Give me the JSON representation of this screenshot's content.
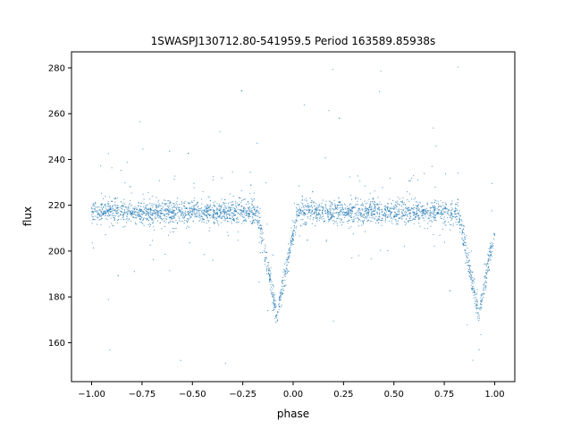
{
  "chart_data": {
    "type": "scatter",
    "title": "1SWASPJ130712.80-541959.5 Period 163589.85938s",
    "xlabel": "phase",
    "ylabel": "flux",
    "xlim": [
      -1.1,
      1.1
    ],
    "ylim": [
      143,
      287
    ],
    "xticks": [
      -1.0,
      -0.75,
      -0.5,
      -0.25,
      0.0,
      0.25,
      0.5,
      0.75,
      1.0
    ],
    "xtick_labels": [
      "−1.00",
      "−0.75",
      "−0.50",
      "−0.25",
      "0.00",
      "0.25",
      "0.50",
      "0.75",
      "1.00"
    ],
    "yticks": [
      160,
      180,
      200,
      220,
      240,
      260,
      280
    ],
    "ytick_labels": [
      "160",
      "180",
      "200",
      "220",
      "240",
      "260",
      "280"
    ],
    "grid": false,
    "point_color": "#1f77b4",
    "series": [
      {
        "baseline_flux": 217,
        "primary_eclipse": {
          "phases": [
            -0.08,
            0.92
          ],
          "min_flux": 172,
          "half_width": 0.1
        },
        "x": [
          -1.0,
          -0.9,
          -0.8,
          -0.7,
          -0.6,
          -0.5,
          -0.4,
          -0.3,
          -0.2,
          -0.18,
          -0.15,
          -0.12,
          -0.1,
          -0.08,
          -0.06,
          -0.04,
          -0.02,
          0.0,
          0.1,
          0.2,
          0.3,
          0.4,
          0.5,
          0.6,
          0.7,
          0.8,
          0.82,
          0.85,
          0.88,
          0.9,
          0.92,
          0.94,
          0.96,
          0.98,
          1.0
        ],
        "y": [
          217,
          217,
          217,
          217,
          217,
          217,
          217,
          217,
          217,
          215,
          203,
          187,
          178,
          172,
          178,
          192,
          207,
          217,
          217,
          217,
          217,
          217,
          217,
          217,
          217,
          217,
          215,
          203,
          187,
          178,
          172,
          178,
          192,
          207,
          217
        ]
      }
    ]
  }
}
